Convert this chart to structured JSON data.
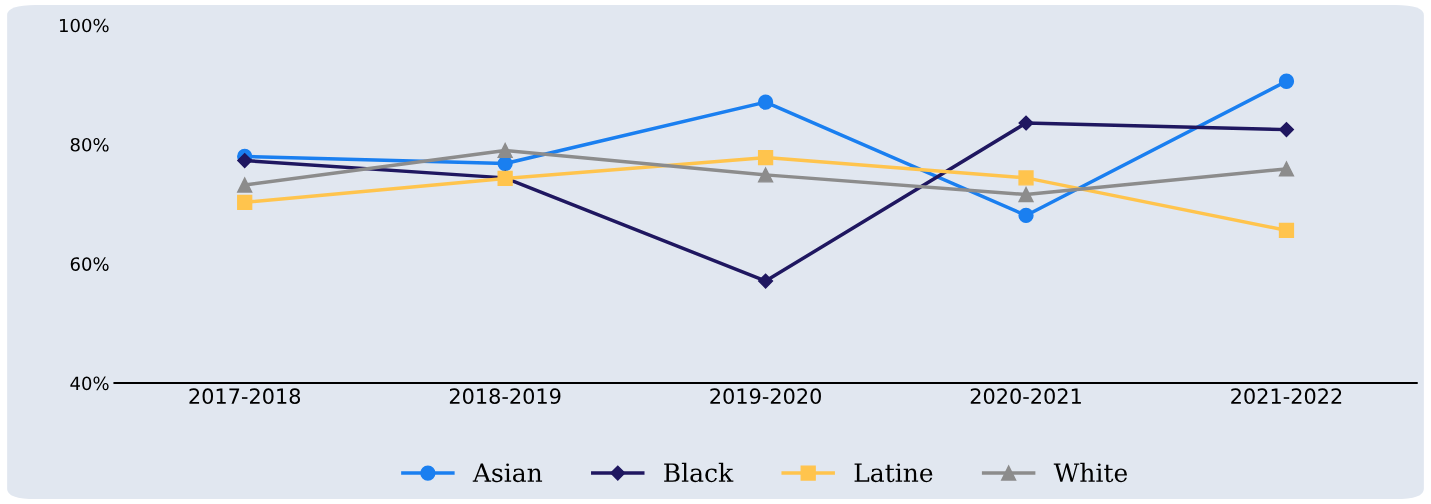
{
  "chart_data": {
    "type": "line",
    "categories": [
      "2017-2018",
      "2018-2019",
      "2019-2020",
      "2020-2021",
      "2021-2022"
    ],
    "series": [
      {
        "name": "Asian",
        "color": "#1a7ff0",
        "marker": "circle",
        "values": [
          78.0,
          76.8,
          87.1,
          68.1,
          90.6
        ]
      },
      {
        "name": "Black",
        "color": "#1f1760",
        "marker": "diamond",
        "values": [
          77.3,
          74.4,
          57.1,
          83.6,
          82.5
        ]
      },
      {
        "name": "Latine",
        "color": "#ffc44d",
        "marker": "square",
        "values": [
          70.3,
          74.3,
          77.8,
          74.4,
          65.6
        ]
      },
      {
        "name": "White",
        "color": "#8c8c8c",
        "marker": "triangle",
        "values": [
          73.2,
          79.0,
          74.9,
          71.6,
          75.9
        ]
      }
    ],
    "ylim": [
      40,
      100
    ],
    "yticks": [
      {
        "value": 40,
        "label": "40%"
      },
      {
        "value": 60,
        "label": "60%"
      },
      {
        "value": 80,
        "label": "80%"
      },
      {
        "value": 100,
        "label": "100%"
      }
    ],
    "grid": false,
    "legend": "bottom",
    "line_style": "solid"
  }
}
